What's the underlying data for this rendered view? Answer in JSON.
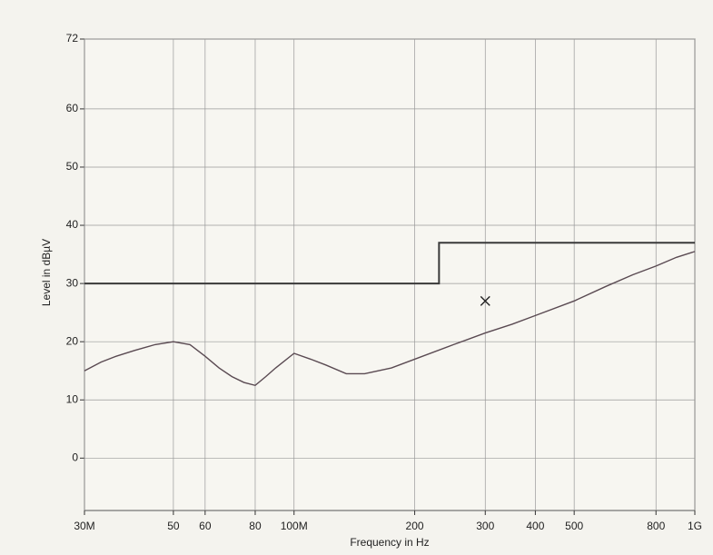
{
  "chart_data": {
    "type": "line",
    "xlabel": "Frequency in Hz",
    "ylabel": "Level in dBµV",
    "xscale": "log",
    "grid": true,
    "xlim": [
      30000000,
      1000000000
    ],
    "ylim": [
      -9,
      72
    ],
    "xticks": [
      {
        "value": 30000000,
        "label": "30M"
      },
      {
        "value": 50000000,
        "label": "50"
      },
      {
        "value": 60000000,
        "label": "60"
      },
      {
        "value": 80000000,
        "label": "80"
      },
      {
        "value": 100000000,
        "label": "100M"
      },
      {
        "value": 200000000,
        "label": "200"
      },
      {
        "value": 300000000,
        "label": "300"
      },
      {
        "value": 400000000,
        "label": "400"
      },
      {
        "value": 500000000,
        "label": "500"
      },
      {
        "value": 800000000,
        "label": "800"
      },
      {
        "value": 1000000000,
        "label": "1G"
      }
    ],
    "yticks": [
      0,
      10,
      20,
      30,
      40,
      50,
      60,
      72
    ],
    "series": [
      {
        "color": "#3a3a3a",
        "x": [
          30000000,
          230000000,
          230000000,
          1000000000
        ],
        "values": [
          30,
          30,
          37,
          37
        ]
      },
      {
        "color": "#5a4a52",
        "x": [
          30000000,
          33000000,
          36000000,
          40000000,
          45000000,
          50000000,
          55000000,
          60000000,
          65000000,
          70000000,
          75000000,
          80000000,
          85000000,
          90000000,
          100000000,
          110000000,
          120000000,
          135000000,
          150000000,
          175000000,
          200000000,
          250000000,
          300000000,
          350000000,
          400000000,
          500000000,
          600000000,
          700000000,
          800000000,
          900000000,
          1000000000
        ],
        "values": [
          15,
          16.5,
          17.5,
          18.5,
          19.5,
          20,
          19.5,
          17.5,
          15.5,
          14,
          13,
          12.5,
          14,
          15.5,
          18,
          17,
          16,
          14.5,
          14.5,
          15.5,
          17,
          19.5,
          21.5,
          23,
          24.5,
          27,
          29.5,
          31.5,
          33,
          34.5,
          35.5
        ]
      }
    ],
    "markers": {
      "x": [
        300000000
      ],
      "values": [
        27
      ]
    }
  }
}
